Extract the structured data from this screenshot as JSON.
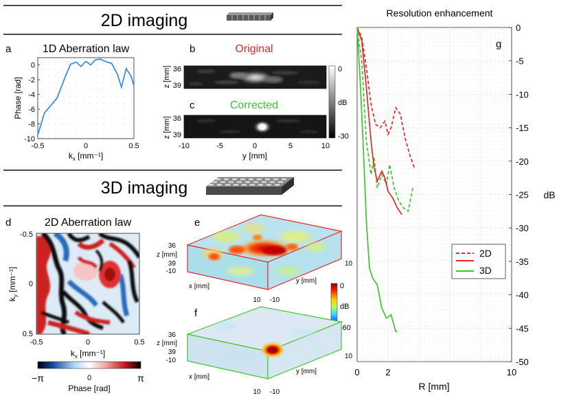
{
  "sections": {
    "two_d_title": "2D imaging",
    "three_d_title": "3D imaging"
  },
  "panels": {
    "a": {
      "letter": "a",
      "title": "1D Aberration law",
      "xlabel": "k",
      "xlabel_sub": "x",
      "xlabel_unit": " [mm⁻¹]",
      "ylabel": "Phase [rad]",
      "xticks": [
        "-0.5",
        "0",
        "0.5"
      ],
      "yticks": [
        "0",
        "-2",
        "-4",
        "-6",
        "-8",
        "-10"
      ]
    },
    "b": {
      "letter": "b",
      "title": "Original"
    },
    "c": {
      "letter": "c",
      "title": "Corrected"
    },
    "bc_axes": {
      "zlabel": "z [mm]",
      "zticks": [
        "36",
        "39"
      ],
      "xlabel": "y [mm]",
      "xticks": [
        "-10",
        "-5",
        "0",
        "5",
        "10"
      ],
      "colorbar_ticks": [
        "0",
        "dB",
        "-30"
      ]
    },
    "d": {
      "letter": "d",
      "title": "2D Aberration law",
      "ylabel": "k",
      "ylabel_sub": "y",
      "ylabel_unit": " [mm⁻¹]",
      "xlabel": "k",
      "xlabel_sub": "x",
      "xlabel_unit": " [mm⁻¹]",
      "yticks": [
        "-0.5",
        "0",
        "0.5"
      ],
      "xticks": [
        "-0.5",
        "0",
        "0.5"
      ],
      "colorbar_ticks": [
        "−π",
        "0",
        "π"
      ],
      "colorbar_label": "Phase [rad]"
    },
    "e": {
      "letter": "e",
      "z_label": "z [mm]",
      "z_ticks": [
        "36",
        "39"
      ],
      "x_label": "x [mm]",
      "y_label": "y [mm]",
      "tick_neg10": "-10",
      "tick_10": "10"
    },
    "f": {
      "letter": "f",
      "z_label": "z [mm]",
      "z_ticks": [
        "36",
        "39"
      ],
      "x_label": "x [mm]",
      "y_label": "y [mm]",
      "tick_neg10": "-10",
      "tick_10": "10"
    },
    "ef_colorbar": {
      "ticks": [
        "0",
        "dB",
        "-60"
      ]
    },
    "g": {
      "letter": "g",
      "title": "Resolution enhancement",
      "xlabel": "R [mm]",
      "ylabel": "dB",
      "xticks": [
        "0",
        "2",
        "10"
      ],
      "yticks": [
        "0",
        "-5",
        "-10",
        "-15",
        "-20",
        "-25",
        "-30",
        "-35",
        "-40",
        "-45",
        "-50"
      ],
      "legend": [
        "2D",
        "3D"
      ]
    }
  },
  "colors": {
    "red": "#e8262a",
    "green": "#3cc42c",
    "blue": "#3a8ee6"
  },
  "chart_data": [
    {
      "type": "line",
      "panel": "a",
      "title": "1D Aberration law",
      "xlabel": "kx [mm^-1]",
      "ylabel": "Phase [rad]",
      "xlim": [
        -0.5,
        0.5
      ],
      "ylim": [
        -10,
        1
      ],
      "series": [
        {
          "name": "phase",
          "x": [
            -0.5,
            -0.43,
            -0.3,
            -0.22,
            -0.16,
            -0.1,
            -0.05,
            0.0,
            0.05,
            0.1,
            0.15,
            0.2,
            0.27,
            0.33,
            0.37,
            0.42,
            0.47,
            0.5
          ],
          "y": [
            -9.5,
            -6.5,
            -4.5,
            -1.8,
            0.1,
            0.4,
            -0.2,
            0.5,
            0.0,
            0.7,
            0.8,
            0.5,
            0.2,
            -1.3,
            -3.0,
            -0.5,
            -1.5,
            -2.8
          ]
        }
      ]
    },
    {
      "type": "line",
      "panel": "g",
      "title": "Resolution enhancement",
      "xlabel": "R [mm]",
      "ylabel": "dB",
      "xlim": [
        0,
        10
      ],
      "ylim": [
        -50,
        0
      ],
      "series": [
        {
          "name": "2D original",
          "style": "dashed",
          "color": "red",
          "x": [
            0,
            0.3,
            0.6,
            0.9,
            1.2,
            1.5,
            1.8,
            2.0,
            2.2,
            2.5,
            2.8,
            3.1,
            3.4,
            3.7
          ],
          "y": [
            0,
            -1.5,
            -6,
            -11.5,
            -14.5,
            -15,
            -14,
            -16,
            -15,
            -12,
            -13,
            -16.5,
            -19,
            -21
          ]
        },
        {
          "name": "2D corrected",
          "style": "dashed",
          "color": "green",
          "x": [
            0,
            0.3,
            0.6,
            0.9,
            1.1,
            1.3,
            1.6,
            1.9,
            2.1,
            2.4,
            2.7,
            3.0,
            3.3,
            3.6
          ],
          "y": [
            0,
            -5,
            -17,
            -22,
            -19.5,
            -24,
            -22,
            -23.5,
            -20.5,
            -24,
            -26,
            -27,
            -27.5,
            -24
          ]
        },
        {
          "name": "3D original",
          "style": "solid",
          "color": "red",
          "x": [
            0,
            0.3,
            0.6,
            0.9,
            1.1,
            1.3,
            1.6,
            1.8,
            2.0,
            2.3,
            2.6,
            2.9
          ],
          "y": [
            0,
            -2,
            -9,
            -17,
            -21,
            -23,
            -21.5,
            -22.5,
            -24.5,
            -25.5,
            -27,
            -28
          ]
        },
        {
          "name": "3D corrected",
          "style": "solid",
          "color": "green",
          "x": [
            0,
            0.2,
            0.4,
            0.6,
            0.8,
            1.0,
            1.3,
            1.6,
            1.9,
            2.2,
            2.5,
            2.6
          ],
          "y": [
            0,
            -8,
            -18,
            -29,
            -36,
            -37.5,
            -38.5,
            -42,
            -43.5,
            -43,
            -45.5,
            -45.5
          ]
        }
      ]
    }
  ]
}
